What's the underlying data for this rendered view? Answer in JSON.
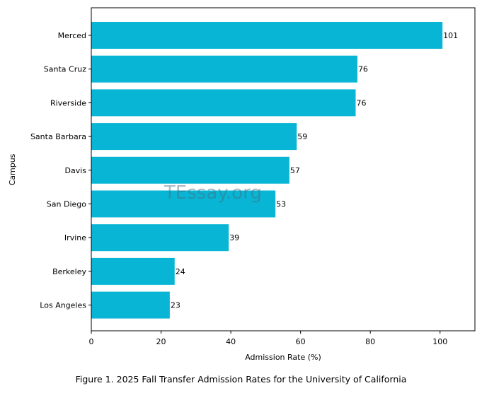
{
  "chart_data": {
    "type": "bar",
    "orientation": "horizontal",
    "title": "",
    "xlabel": "Admission Rate (%)",
    "ylabel": "Campus",
    "xlim": [
      0,
      110
    ],
    "xticks": [
      0,
      20,
      40,
      60,
      80,
      100
    ],
    "categories": [
      "Merced",
      "Santa Cruz",
      "Riverside",
      "Santa Barbara",
      "Davis",
      "San Diego",
      "Irvine",
      "Berkeley",
      "Los Angeles"
    ],
    "values": [
      100.7,
      76.3,
      75.8,
      58.9,
      56.8,
      52.8,
      39.4,
      23.9,
      22.5
    ],
    "value_labels": [
      "101",
      "76",
      "76",
      "59",
      "57",
      "53",
      "39",
      "24",
      "23"
    ],
    "bar_color": "#08b5d4",
    "grid": false,
    "legend": "none"
  },
  "watermark": "TEssay.org",
  "caption": "Figure 1. 2025 Fall Transfer Admission Rates for the University of California"
}
